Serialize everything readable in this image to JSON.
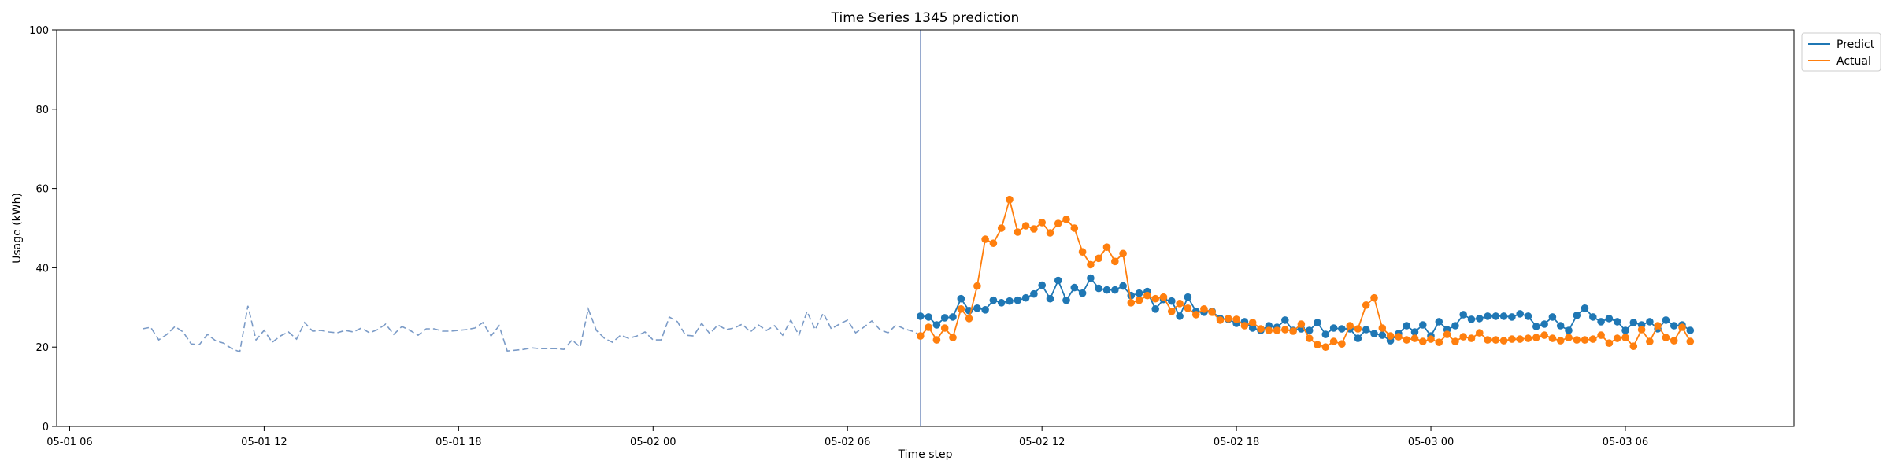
{
  "chart_data": {
    "type": "line",
    "title": "Time Series 1345 prediction",
    "xlabel": "Time step",
    "ylabel": "Usage (kWh)",
    "ylim": [
      0,
      100
    ],
    "xlim": [
      "2025-05-01T05:36",
      "2025-05-03T11:12"
    ],
    "yticks": [
      0,
      20,
      40,
      60,
      80,
      100
    ],
    "xticks": [
      {
        "t": "2025-05-01T06:00",
        "label": "05-01 06"
      },
      {
        "t": "2025-05-01T12:00",
        "label": "05-01 12"
      },
      {
        "t": "2025-05-01T18:00",
        "label": "05-01 18"
      },
      {
        "t": "2025-05-02T00:00",
        "label": "05-02 00"
      },
      {
        "t": "2025-05-02T06:00",
        "label": "05-02 06"
      },
      {
        "t": "2025-05-02T12:00",
        "label": "05-02 12"
      },
      {
        "t": "2025-05-02T18:00",
        "label": "05-02 18"
      },
      {
        "t": "2025-05-03T00:00",
        "label": "05-03 00"
      },
      {
        "t": "2025-05-03T06:00",
        "label": "05-03 06"
      }
    ],
    "history_start": "2025-05-01T08:15",
    "forecast_start": "2025-05-02T08:15",
    "step_minutes": 15,
    "history_values": [
      24.6,
      25.0,
      21.8,
      23.2,
      25.2,
      23.8,
      20.8,
      20.6,
      23.2,
      21.6,
      21.0,
      19.6,
      18.8,
      30.4,
      21.8,
      24.2,
      21.2,
      22.8,
      23.8,
      22.0,
      26.2,
      24.0,
      24.2,
      23.8,
      23.6,
      24.2,
      23.8,
      24.8,
      23.6,
      24.4,
      25.8,
      23.2,
      25.2,
      24.2,
      23.0,
      24.6,
      24.6,
      24.0,
      24.0,
      24.2,
      24.4,
      24.8,
      26.2,
      22.8,
      25.4,
      19.0,
      19.2,
      19.4,
      19.8,
      19.6,
      19.6,
      19.6,
      19.4,
      21.8,
      20.0,
      29.6,
      24.2,
      22.2,
      21.2,
      23.0,
      22.2,
      22.8,
      23.8,
      21.8,
      21.8,
      27.6,
      26.4,
      23.0,
      22.8,
      26.0,
      23.4,
      25.6,
      24.4,
      24.8,
      25.8,
      23.8,
      25.6,
      24.2,
      25.4,
      23.0,
      26.8,
      23.0,
      29.0,
      24.4,
      28.6,
      24.6,
      25.8,
      26.8,
      23.6,
      25.0,
      26.6,
      24.4,
      23.6,
      25.6,
      24.6,
      24.0,
      23.0
    ],
    "series": [
      {
        "name": "Predict",
        "color": "#1f77b4",
        "values": [
          27.8,
          27.6,
          25.6,
          27.4,
          27.6,
          32.2,
          29.2,
          29.8,
          29.4,
          31.8,
          31.2,
          31.6,
          31.8,
          32.4,
          33.4,
          35.6,
          32.2,
          36.8,
          31.8,
          35.0,
          33.6,
          37.4,
          34.8,
          34.4,
          34.4,
          35.4,
          33.0,
          33.6,
          34.0,
          29.6,
          32.0,
          31.6,
          27.8,
          32.6,
          29.0,
          28.8,
          29.0,
          27.2,
          27.0,
          26.0,
          26.4,
          24.8,
          24.2,
          25.4,
          25.0,
          26.8,
          24.2,
          24.6,
          24.2,
          26.2,
          23.2,
          24.8,
          24.6,
          24.6,
          22.2,
          24.4,
          23.4,
          23.0,
          21.6,
          23.4,
          25.4,
          23.8,
          25.6,
          22.8,
          26.4,
          24.4,
          25.4,
          28.2,
          27.0,
          27.2,
          27.8,
          27.8,
          27.8,
          27.6,
          28.4,
          27.8,
          25.2,
          25.8,
          27.6,
          25.4,
          24.2,
          28.0,
          29.8,
          27.6,
          26.4,
          27.2,
          26.4,
          24.2,
          26.2,
          25.6,
          26.4,
          24.6,
          26.8,
          25.4,
          25.6,
          24.2
        ]
      },
      {
        "name": "Actual",
        "color": "#ff7f0e",
        "values": [
          22.8,
          25.0,
          21.8,
          24.8,
          22.4,
          29.6,
          27.2,
          35.4,
          47.2,
          46.2,
          50.0,
          57.2,
          49.0,
          50.6,
          49.8,
          51.4,
          48.8,
          51.2,
          52.2,
          50.0,
          44.0,
          40.8,
          42.4,
          45.2,
          41.6,
          43.6,
          31.2,
          31.8,
          33.0,
          32.2,
          32.6,
          29.0,
          31.0,
          29.8,
          28.2,
          29.6,
          28.8,
          26.8,
          27.2,
          27.0,
          25.4,
          26.2,
          24.6,
          24.2,
          24.2,
          24.4,
          24.0,
          25.8,
          22.2,
          20.6,
          20.0,
          21.4,
          20.8,
          25.4,
          24.6,
          30.6,
          32.4,
          24.8,
          22.8,
          22.6,
          21.8,
          22.2,
          21.4,
          22.0,
          21.2,
          23.2,
          21.4,
          22.6,
          22.2,
          23.6,
          21.8,
          21.8,
          21.6,
          22.0,
          22.0,
          22.2,
          22.4,
          23.0,
          22.2,
          21.6,
          22.4,
          21.8,
          21.8,
          22.0,
          23.0,
          21.0,
          22.2,
          22.4,
          20.2,
          24.4,
          21.4,
          25.4,
          22.4,
          21.6,
          25.0,
          21.4
        ]
      }
    ],
    "history_color": "#7b9bc7",
    "forecast_line_color": "#8097c4",
    "grid": false,
    "legend": "top-right"
  }
}
